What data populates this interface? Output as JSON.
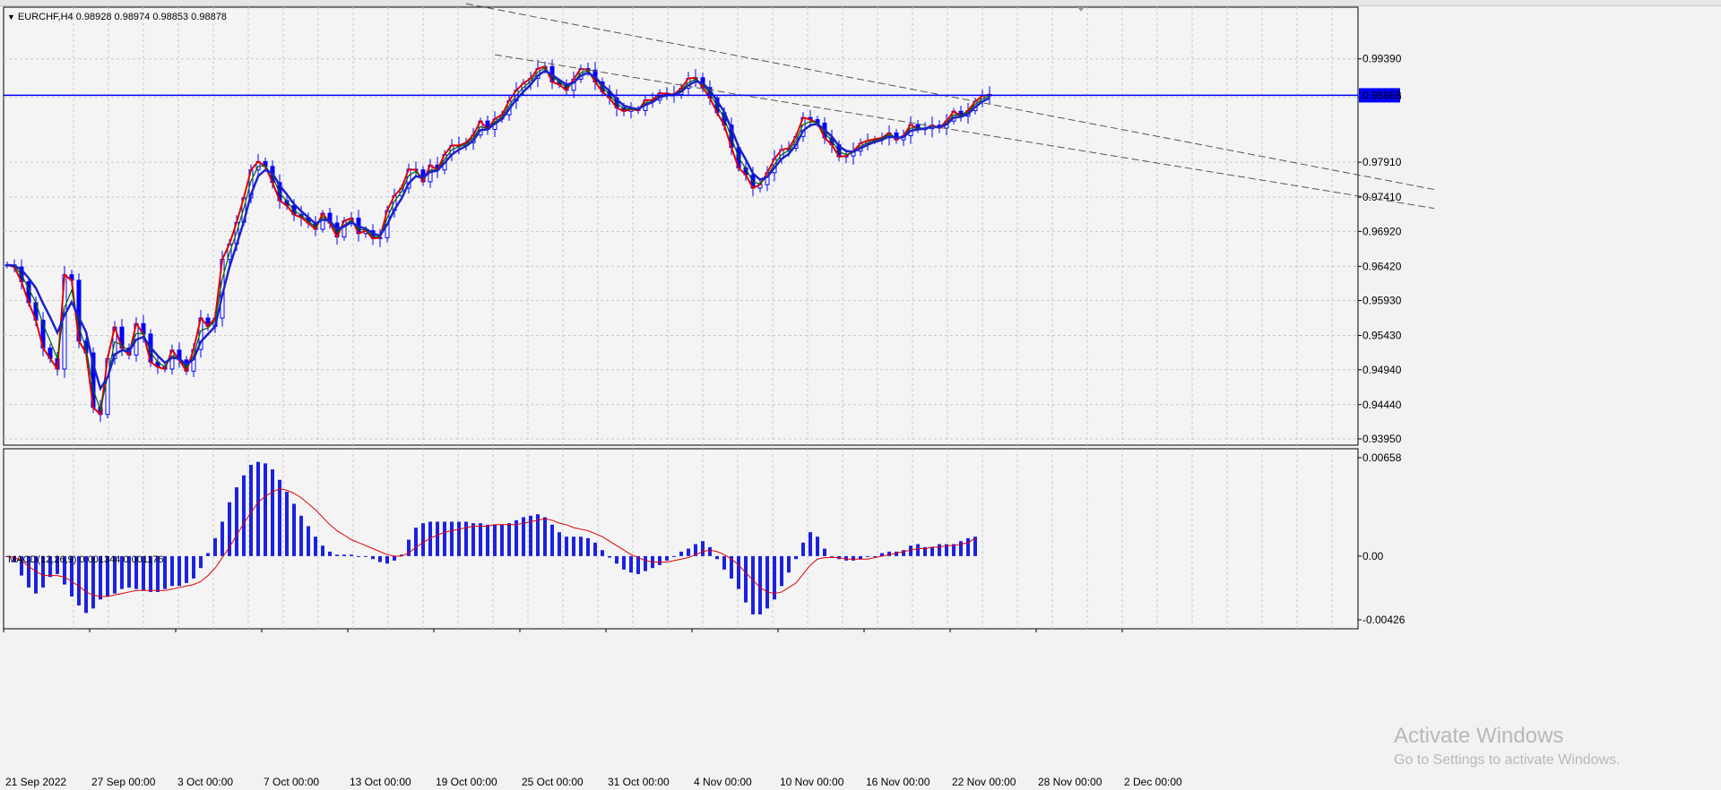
{
  "window": {
    "symbol_caption": "EURCHF,H4  0.98928 0.98974 0.98853 0.98878",
    "current_price": "0.98868"
  },
  "colors": {
    "background": "#f2f2f2",
    "plot_background": "#f4f4f4",
    "grid": "#c9c9c9",
    "bull_candle": "#0000ff",
    "bear_candle": "#0000ff",
    "ema_fast": "#e00000",
    "ema_mid": "#006400",
    "ema_slow": "#1c22c8",
    "price_line": "#0000ff",
    "trendline": "#555555",
    "macd_hist": "#1c22e0",
    "macd_signal": "#e00000",
    "watermark": "#b8b8b8"
  },
  "macd_panel": {
    "caption": "MACD(12,26,9) 0.001344 0.001176",
    "y_labels": [
      "0.00658",
      "0.00",
      "-0.00426"
    ]
  },
  "watermark": {
    "title": "Activate Windows",
    "subtitle": "Go to Settings to activate Windows."
  },
  "chart_data": [
    {
      "type": "candlestick",
      "title": "EURCHF,H4",
      "ohlc_header": {
        "open": 0.98928,
        "high": 0.98974,
        "low": 0.98853,
        "close": 0.98878
      },
      "x_labels": [
        "21 Sep 2022",
        "27 Sep 00:00",
        "3 Oct 00:00",
        "7 Oct 00:00",
        "13 Oct 00:00",
        "19 Oct 00:00",
        "25 Oct 00:00",
        "31 Oct 00:00",
        "4 Nov 00:00",
        "10 Nov 00:00",
        "16 Nov 00:00",
        "22 Nov 00:00",
        "28 Nov 00:00",
        "2 Dec 00:00"
      ],
      "y_labels": [
        "0.99390",
        "0.98840",
        "0.97910",
        "0.97410",
        "0.96920",
        "0.96420",
        "0.95930",
        "0.95430",
        "0.94940",
        "0.94440",
        "0.93950"
      ],
      "ylim": [
        0.9386,
        1.0013
      ],
      "current_price": 0.98868,
      "closes": [
        0.9644,
        0.9641,
        0.962,
        0.959,
        0.9565,
        0.9525,
        0.951,
        0.9495,
        0.963,
        0.9622,
        0.9535,
        0.9518,
        0.944,
        0.943,
        0.951,
        0.9555,
        0.9525,
        0.9515,
        0.956,
        0.9545,
        0.9505,
        0.9498,
        0.9495,
        0.9522,
        0.9508,
        0.9492,
        0.9523,
        0.9568,
        0.9556,
        0.9568,
        0.9652,
        0.9674,
        0.9705,
        0.974,
        0.978,
        0.9792,
        0.9785,
        0.9762,
        0.9736,
        0.9729,
        0.9716,
        0.9712,
        0.9704,
        0.9695,
        0.9718,
        0.9704,
        0.9684,
        0.9707,
        0.9711,
        0.9689,
        0.9693,
        0.9682,
        0.9683,
        0.9722,
        0.9743,
        0.9754,
        0.9781,
        0.978,
        0.9763,
        0.9787,
        0.978,
        0.9802,
        0.9815,
        0.9815,
        0.9819,
        0.983,
        0.985,
        0.9838,
        0.9853,
        0.9859,
        0.9879,
        0.9894,
        0.9904,
        0.9911,
        0.9925,
        0.9928,
        0.9906,
        0.9902,
        0.9894,
        0.991,
        0.9925,
        0.9923,
        0.9906,
        0.9892,
        0.9883,
        0.9869,
        0.9864,
        0.9867,
        0.9865,
        0.988,
        0.988,
        0.989,
        0.9889,
        0.9888,
        0.9897,
        0.9911,
        0.9912,
        0.9898,
        0.9883,
        0.9862,
        0.9844,
        0.9812,
        0.9783,
        0.9773,
        0.9754,
        0.9759,
        0.9776,
        0.9796,
        0.9809,
        0.9811,
        0.9828,
        0.9855,
        0.9852,
        0.9847,
        0.9826,
        0.9816,
        0.9799,
        0.98,
        0.9807,
        0.9818,
        0.9822,
        0.9824,
        0.9826,
        0.9833,
        0.9823,
        0.9829,
        0.9845,
        0.9839,
        0.9839,
        0.9844,
        0.984,
        0.985,
        0.9864,
        0.9857,
        0.9865,
        0.9878,
        0.9886,
        0.9888
      ],
      "series": [
        {
          "name": "EMA fast",
          "values": [
            0.9644,
            0.9641,
            0.962,
            0.959,
            0.9565,
            0.9525,
            0.951,
            0.9495,
            0.963,
            0.9622,
            0.9535,
            0.9518,
            0.944,
            0.943,
            0.951,
            0.9555,
            0.9525,
            0.9515,
            0.956,
            0.9545,
            0.9505,
            0.9498,
            0.9495,
            0.9522,
            0.9508,
            0.9492,
            0.9523,
            0.9568,
            0.9556,
            0.9568,
            0.9652,
            0.9674,
            0.9705,
            0.974,
            0.978,
            0.9792,
            0.9785,
            0.9762,
            0.9736,
            0.9729,
            0.9716,
            0.9712,
            0.9704,
            0.9695,
            0.9718,
            0.9704,
            0.9684,
            0.9707,
            0.9711,
            0.9689,
            0.9693,
            0.9682,
            0.9683,
            0.9722,
            0.9743,
            0.9754,
            0.9781,
            0.978,
            0.9763,
            0.9787,
            0.978,
            0.9802,
            0.9815,
            0.9815,
            0.9819,
            0.983,
            0.985,
            0.9838,
            0.9853,
            0.9859,
            0.9879,
            0.9894,
            0.9904,
            0.9911,
            0.9925,
            0.9928,
            0.9906,
            0.9902,
            0.9894,
            0.991,
            0.9925,
            0.9923,
            0.9906,
            0.9892,
            0.9883,
            0.9869,
            0.9864,
            0.9867,
            0.9865,
            0.988,
            0.988,
            0.989,
            0.9889,
            0.9888,
            0.9897,
            0.9911,
            0.9912,
            0.9898,
            0.9883,
            0.9862,
            0.9844,
            0.9812,
            0.9783,
            0.9773,
            0.9754,
            0.9759,
            0.9776,
            0.9796,
            0.9809,
            0.9811,
            0.9828,
            0.9855,
            0.9852,
            0.9847,
            0.9826,
            0.9816,
            0.9799,
            0.98,
            0.9807,
            0.9818,
            0.9822,
            0.9824,
            0.9826,
            0.9833,
            0.9823,
            0.9829,
            0.9845,
            0.9839,
            0.9839,
            0.9844,
            0.984,
            0.985,
            0.9864,
            0.9857,
            0.9865,
            0.9878,
            0.9886,
            0.9888
          ]
        },
        {
          "name": "EMA mid",
          "values": [
            0.9644,
            0.9642,
            0.963,
            0.961,
            0.959,
            0.9559,
            0.9535,
            0.951,
            0.9583,
            0.9608,
            0.9555,
            0.9525,
            0.9466,
            0.9436,
            0.9484,
            0.9534,
            0.9529,
            0.952,
            0.9546,
            0.9546,
            0.9519,
            0.9505,
            0.9498,
            0.9514,
            0.951,
            0.9497,
            0.9514,
            0.955,
            0.9554,
            0.9564,
            0.9624,
            0.9661,
            0.9691,
            0.9725,
            0.9764,
            0.9785,
            0.9786,
            0.9771,
            0.9747,
            0.9735,
            0.9722,
            0.9715,
            0.9707,
            0.9698,
            0.9713,
            0.9707,
            0.969,
            0.9701,
            0.9708,
            0.9695,
            0.9694,
            0.9685,
            0.9684,
            0.9711,
            0.9735,
            0.9749,
            0.9772,
            0.9778,
            0.9768,
            0.978,
            0.978,
            0.9795,
            0.9809,
            0.9813,
            0.9817,
            0.9826,
            0.9842,
            0.9839,
            0.9849,
            0.9856,
            0.9872,
            0.9887,
            0.9898,
            0.9907,
            0.992,
            0.9926,
            0.9913,
            0.9906,
            0.9898,
            0.9905,
            0.9919,
            0.9922,
            0.9911,
            0.9898,
            0.9888,
            0.9875,
            0.9868,
            0.9867,
            0.9866,
            0.9876,
            0.9878,
            0.9886,
            0.9888,
            0.9888,
            0.9894,
            0.9905,
            0.991,
            0.9902,
            0.9889,
            0.9872,
            0.9854,
            0.9826,
            0.9798,
            0.9782,
            0.9763,
            0.976,
            0.9771,
            0.9788,
            0.9802,
            0.9808,
            0.9822,
            0.9845,
            0.9849,
            0.9848,
            0.9833,
            0.9822,
            0.9806,
            0.9802,
            0.9805,
            0.9814,
            0.9819,
            0.9822,
            0.9825,
            0.9831,
            0.9826,
            0.9828,
            0.984,
            0.984,
            0.984,
            0.9843,
            0.9841,
            0.9847,
            0.9859,
            0.9858,
            0.9863,
            0.9874,
            0.9882,
            0.9886
          ]
        },
        {
          "name": "EMA slow",
          "values": [
            0.9644,
            0.9643,
            0.9637,
            0.9625,
            0.9611,
            0.9589,
            0.9569,
            0.9547,
            0.9572,
            0.9591,
            0.9569,
            0.9548,
            0.9502,
            0.9467,
            0.9483,
            0.9516,
            0.9522,
            0.952,
            0.9537,
            0.9541,
            0.9526,
            0.9514,
            0.9504,
            0.9511,
            0.951,
            0.9501,
            0.9509,
            0.9534,
            0.9545,
            0.9556,
            0.9601,
            0.9641,
            0.9673,
            0.9706,
            0.9745,
            0.9771,
            0.978,
            0.9775,
            0.9758,
            0.9745,
            0.9731,
            0.9721,
            0.9712,
            0.9703,
            0.9709,
            0.9707,
            0.9695,
            0.9699,
            0.9705,
            0.9699,
            0.9696,
            0.9689,
            0.9686,
            0.9702,
            0.9723,
            0.9739,
            0.9761,
            0.9771,
            0.9769,
            0.9777,
            0.9779,
            0.979,
            0.9802,
            0.9809,
            0.9814,
            0.9822,
            0.9837,
            0.9838,
            0.9846,
            0.9853,
            0.9867,
            0.9881,
            0.9892,
            0.9902,
            0.9915,
            0.9922,
            0.9916,
            0.9909,
            0.9902,
            0.9905,
            0.9915,
            0.9919,
            0.9913,
            0.9902,
            0.9893,
            0.9881,
            0.9872,
            0.9869,
            0.9867,
            0.9873,
            0.9877,
            0.9884,
            0.9887,
            0.9887,
            0.9892,
            0.9901,
            0.9907,
            0.9904,
            0.9894,
            0.9879,
            0.9863,
            0.9839,
            0.9813,
            0.9795,
            0.9775,
            0.9766,
            0.977,
            0.9783,
            0.9796,
            0.9803,
            0.9816,
            0.9836,
            0.9844,
            0.9846,
            0.9837,
            0.9828,
            0.9814,
            0.9807,
            0.9806,
            0.9811,
            0.9816,
            0.982,
            0.9823,
            0.9828,
            0.9826,
            0.9827,
            0.9836,
            0.9838,
            0.9839,
            0.9842,
            0.9841,
            0.9845,
            0.9855,
            0.9856,
            0.986,
            0.987,
            0.9878,
            0.9883
          ]
        }
      ],
      "trendlines": [
        {
          "from": {
            "index": 64,
            "price": 1.0018
          },
          "to": {
            "index": 199,
            "price": 0.9752
          }
        },
        {
          "from": {
            "index": 68,
            "price": 0.9945
          },
          "to": {
            "index": 199,
            "price": 0.9725
          }
        }
      ]
    },
    {
      "type": "bar",
      "title": "MACD(12,26,9) 0.001344 0.001176",
      "ylim": [
        -0.00426,
        0.00658
      ],
      "series": [
        {
          "name": "MACD",
          "values": [
            0,
            -0.0004,
            -0.0013,
            -0.0021,
            -0.0025,
            -0.0021,
            -0.0014,
            -0.0012,
            -0.0019,
            -0.0027,
            -0.0033,
            -0.0038,
            -0.0035,
            -0.0029,
            -0.0027,
            -0.0025,
            -0.0022,
            -0.0021,
            -0.0022,
            -0.0023,
            -0.0024,
            -0.0024,
            -0.0022,
            -0.002,
            -0.002,
            -0.0018,
            -0.0015,
            -0.0008,
            0.0002,
            0.0012,
            0.0023,
            0.0036,
            0.0046,
            0.0054,
            0.0061,
            0.0063,
            0.0062,
            0.0058,
            0.0051,
            0.0043,
            0.0035,
            0.0027,
            0.002,
            0.0013,
            0.0007,
            0.0003,
            0.0001,
            0.0001,
            0.0001,
            0,
            0,
            -0.0002,
            -0.0004,
            -0.0005,
            -0.0003,
            0.0001,
            0.0011,
            0.0019,
            0.0022,
            0.0023,
            0.0023,
            0.0023,
            0.0023,
            0.0023,
            0.0023,
            0.0022,
            0.0022,
            0.0021,
            0.0021,
            0.0021,
            0.0022,
            0.0024,
            0.0026,
            0.0027,
            0.0028,
            0.0026,
            0.0021,
            0.0016,
            0.0013,
            0.0013,
            0.0013,
            0.0012,
            0.0009,
            0.0004,
            -0.0001,
            -0.0005,
            -0.0009,
            -0.0011,
            -0.0012,
            -0.001,
            -0.0008,
            -0.0006,
            -0.0003,
            0,
            0.0003,
            0.0005,
            0.0008,
            0.001,
            0.0006,
            -0.0002,
            -0.0009,
            -0.0015,
            -0.0022,
            -0.0031,
            -0.0039,
            -0.0039,
            -0.0035,
            -0.0029,
            -0.002,
            -0.0011,
            -0.0002,
            0.0009,
            0.0016,
            0.0013,
            0.0005,
            0,
            -0.0002,
            -0.0003,
            -0.0003,
            -0.0002,
            0,
            0,
            0.0002,
            0.0003,
            0.0003,
            0.0004,
            0.0007,
            0.0008,
            0.0006,
            0.0006,
            0.0008,
            0.0008,
            0.0008,
            0.001,
            0.0012,
            0.0013
          ]
        },
        {
          "name": "Signal",
          "values": [
            0,
            -0.0001,
            -0.0003,
            -0.0007,
            -0.001,
            -0.0013,
            -0.0013,
            -0.0013,
            -0.0014,
            -0.0017,
            -0.002,
            -0.0024,
            -0.0026,
            -0.0027,
            -0.0027,
            -0.0026,
            -0.0025,
            -0.0024,
            -0.0023,
            -0.0023,
            -0.0023,
            -0.0023,
            -0.0023,
            -0.0022,
            -0.0021,
            -0.002,
            -0.0019,
            -0.0017,
            -0.0013,
            -0.0008,
            -0.0001,
            0.0006,
            0.0014,
            0.0022,
            0.0029,
            0.0036,
            0.004,
            0.0043,
            0.0045,
            0.0044,
            0.0042,
            0.0039,
            0.0035,
            0.0031,
            0.0026,
            0.0021,
            0.0017,
            0.0014,
            0.0011,
            0.0009,
            0.0007,
            0.0005,
            0.0003,
            0.0001,
            0,
            0,
            0.0002,
            0.0006,
            0.0009,
            0.0012,
            0.0014,
            0.0016,
            0.0017,
            0.0018,
            0.0019,
            0.002,
            0.002,
            0.002,
            0.0021,
            0.0021,
            0.0021,
            0.0021,
            0.0022,
            0.0023,
            0.0024,
            0.0025,
            0.0024,
            0.0022,
            0.0021,
            0.0019,
            0.0018,
            0.0017,
            0.0015,
            0.0013,
            0.001,
            0.0007,
            0.0004,
            0.0001,
            -0.0001,
            -0.0003,
            -0.0004,
            -0.0004,
            -0.0004,
            -0.0003,
            -0.0002,
            -0.0001,
            0.0001,
            0.0003,
            0.0004,
            0.0003,
            0.0001,
            -0.0002,
            -0.0006,
            -0.0011,
            -0.0016,
            -0.0021,
            -0.0024,
            -0.0025,
            -0.0024,
            -0.0021,
            -0.0018,
            -0.0012,
            -0.0006,
            -0.0002,
            -0.0001,
            -0.0001,
            -0.0001,
            -0.0002,
            -0.0002,
            -0.0002,
            -0.0002,
            -0.0001,
            0,
            0.0001,
            0.0002,
            0.0003,
            0.0004,
            0.0005,
            0.0005,
            0.0006,
            0.0006,
            0.0007,
            0.0007,
            0.0008,
            0.0009,
            0.0012
          ]
        }
      ]
    }
  ]
}
